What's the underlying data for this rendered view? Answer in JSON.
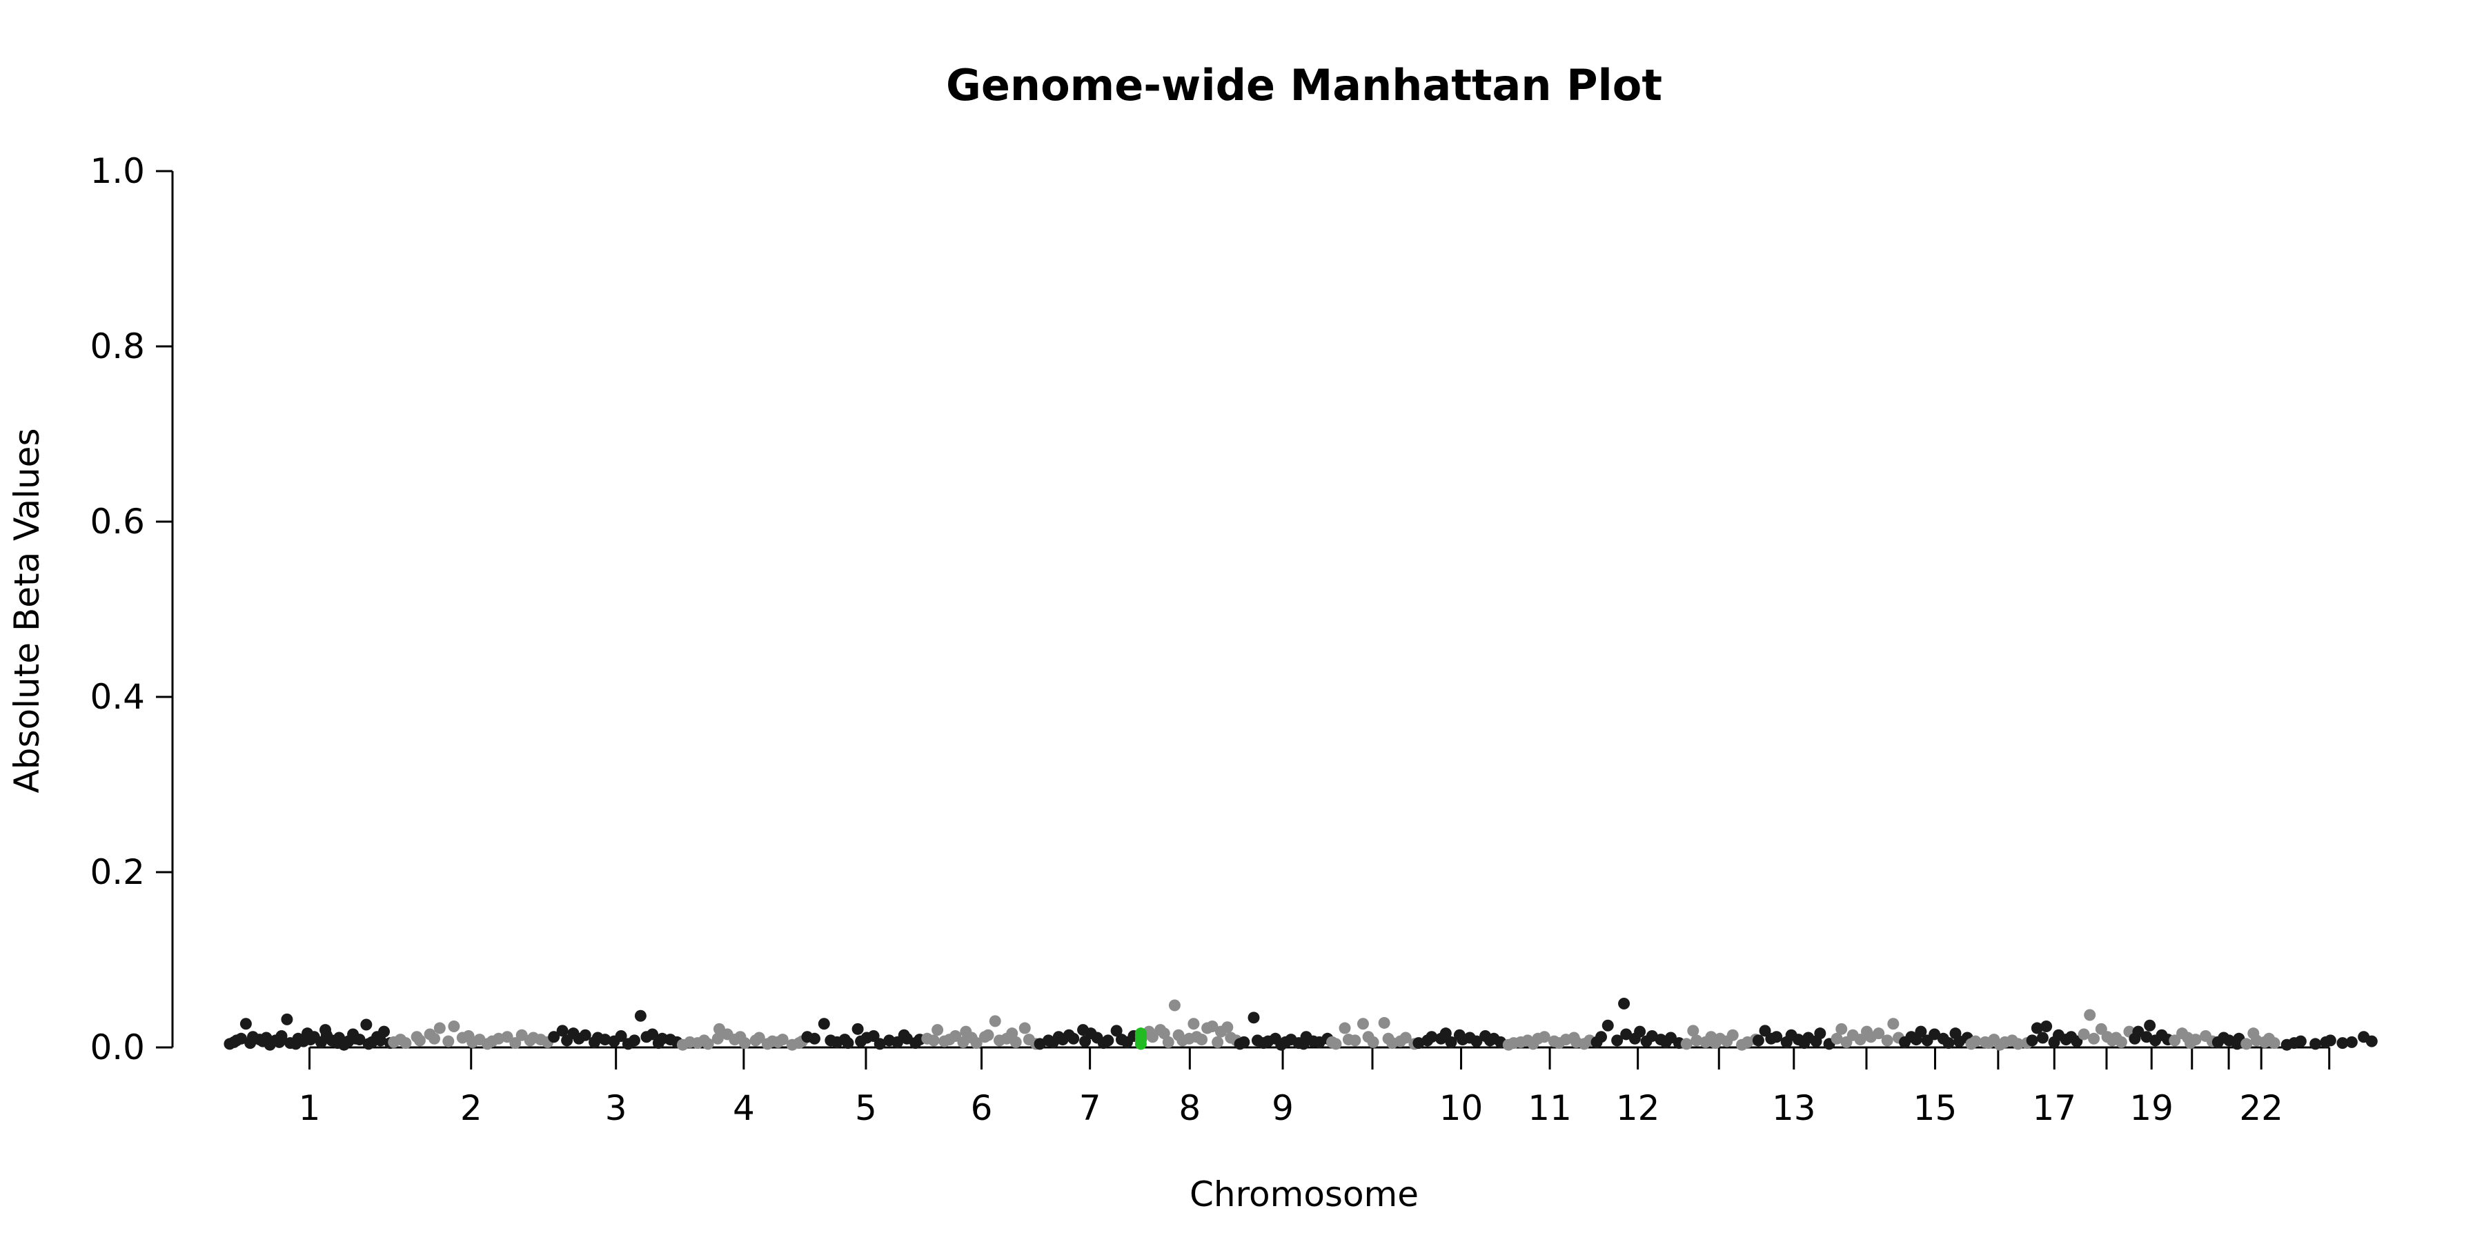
{
  "chart_data": {
    "type": "scatter",
    "title": "Genome-wide Manhattan Plot",
    "xlabel": "Chromosome",
    "ylabel": "Absolute Beta Values",
    "ylim": [
      0,
      1.0
    ],
    "yticks": [
      "0.0",
      "0.2",
      "0.4",
      "0.6",
      "0.8",
      "1.0"
    ],
    "grid": false,
    "legend": "none",
    "colors": {
      "odd": "#1a1a1a",
      "even": "#8c8c8c",
      "highlight": "#22bb22"
    },
    "chromosomes": [
      {
        "label": "1",
        "shown": true,
        "start": 0,
        "end": 249,
        "center": 124.5,
        "values": [
          0.004,
          0.006,
          0.008,
          0.01,
          0.027,
          0.005,
          0.012,
          0.009,
          0.007,
          0.011,
          0.003,
          0.008,
          0.006,
          0.013,
          0.032,
          0.005,
          0.004,
          0.01,
          0.007,
          0.016,
          0.009,
          0.012,
          0.006,
          0.02,
          0.014,
          0.008,
          0.005,
          0.011,
          0.003,
          0.007,
          0.015,
          0.01,
          0.009,
          0.026,
          0.004,
          0.006,
          0.012,
          0.008,
          0.018,
          0.005
        ]
      },
      {
        "label": "2",
        "shown": true,
        "start": 249,
        "end": 492,
        "center": 370.5,
        "values": [
          0.006,
          0.009,
          0.005,
          0.012,
          0.008,
          0.015,
          0.01,
          0.022,
          0.007,
          0.024,
          0.011,
          0.013,
          0.006,
          0.009,
          0.004,
          0.007,
          0.01,
          0.012,
          0.005,
          0.014,
          0.008,
          0.011,
          0.009,
          0.006
        ]
      },
      {
        "label": "3",
        "shown": true,
        "start": 492,
        "end": 690,
        "center": 591,
        "values": [
          0.012,
          0.019,
          0.008,
          0.016,
          0.01,
          0.014,
          0.006,
          0.011,
          0.009,
          0.007,
          0.013,
          0.004,
          0.008,
          0.036,
          0.012,
          0.015,
          0.005,
          0.01,
          0.009,
          0.006
        ]
      },
      {
        "label": "4",
        "shown": true,
        "start": 690,
        "end": 881,
        "center": 785.5,
        "values": [
          0.003,
          0.006,
          0.005,
          0.008,
          0.004,
          0.01,
          0.021,
          0.015,
          0.009,
          0.012,
          0.005,
          0.008,
          0.011,
          0.004,
          0.007,
          0.006,
          0.009,
          0.003,
          0.005,
          0.007
        ]
      },
      {
        "label": "5",
        "shown": true,
        "start": 881,
        "end": 1062,
        "center": 971.5,
        "values": [
          0.012,
          0.01,
          0.027,
          0.008,
          0.006,
          0.009,
          0.005,
          0.021,
          0.007,
          0.011,
          0.013,
          0.004,
          0.008,
          0.006,
          0.014,
          0.01,
          0.005,
          0.009
        ]
      },
      {
        "label": "6",
        "shown": true,
        "start": 1062,
        "end": 1233,
        "center": 1147.5,
        "values": [
          0.01,
          0.008,
          0.02,
          0.007,
          0.009,
          0.013,
          0.006,
          0.018,
          0.011,
          0.005,
          0.012,
          0.014,
          0.03,
          0.008,
          0.01,
          0.016,
          0.006,
          0.022,
          0.009,
          0.004
        ]
      },
      {
        "label": "7",
        "shown": true,
        "start": 1233,
        "end": 1392,
        "center": 1312.5,
        "values": [
          0.004,
          0.008,
          0.006,
          0.012,
          0.009,
          0.014,
          0.01,
          0.02,
          0.007,
          0.016,
          0.011,
          0.005,
          0.008,
          0.019,
          0.009,
          0.006,
          0.013,
          0.01
        ]
      },
      {
        "label": "8",
        "shown": true,
        "start": 1392,
        "end": 1537,
        "center": 1464.5,
        "values": [
          0.015,
          0.018,
          0.012,
          0.02,
          0.016,
          0.006,
          0.048,
          0.014,
          0.008,
          0.01,
          0.027,
          0.012,
          0.009,
          0.022,
          0.024,
          0.006,
          0.018,
          0.023,
          0.011,
          0.008
        ]
      },
      {
        "label": "9",
        "shown": true,
        "start": 1537,
        "end": 1675,
        "center": 1606,
        "values": [
          0.004,
          0.006,
          0.034,
          0.008,
          0.005,
          0.007,
          0.01,
          0.003,
          0.006,
          0.009,
          0.005,
          0.004,
          0.012,
          0.007,
          0.006,
          0.01
        ]
      },
      {
        "label": "",
        "shown": false,
        "start": 1675,
        "end": 1810,
        "center": 1742.5,
        "values": [
          0.006,
          0.004,
          0.022,
          0.009,
          0.008,
          0.027,
          0.012,
          0.006,
          0.028,
          0.01,
          0.005,
          0.007,
          0.011,
          0.004
        ]
      },
      {
        "label": "10",
        "shown": true,
        "start": 1810,
        "end": 1945,
        "center": 1877.5,
        "values": [
          0.005,
          0.008,
          0.012,
          0.01,
          0.016,
          0.006,
          0.014,
          0.009,
          0.011,
          0.007,
          0.013,
          0.008,
          0.01,
          0.006
        ]
      },
      {
        "label": "11",
        "shown": true,
        "start": 1945,
        "end": 2080,
        "center": 2012.5,
        "values": [
          0.003,
          0.005,
          0.006,
          0.008,
          0.004,
          0.01,
          0.012,
          0.007,
          0.005,
          0.009,
          0.011,
          0.006,
          0.004,
          0.008
        ]
      },
      {
        "label": "12",
        "shown": true,
        "start": 2080,
        "end": 2213,
        "center": 2146.5,
        "values": [
          0.006,
          0.012,
          0.025,
          0.008,
          0.05,
          0.015,
          0.01,
          0.018,
          0.007,
          0.013,
          0.009,
          0.006,
          0.011,
          0.005
        ]
      },
      {
        "label": "",
        "shown": false,
        "start": 2213,
        "end": 2327,
        "center": 2270,
        "values": [
          0.004,
          0.019,
          0.008,
          0.006,
          0.012,
          0.005,
          0.01,
          0.007,
          0.014,
          0.003,
          0.006,
          0.009
        ]
      },
      {
        "label": "13",
        "shown": true,
        "start": 2327,
        "end": 2441,
        "center": 2384,
        "values": [
          0.008,
          0.019,
          0.01,
          0.012,
          0.006,
          0.014,
          0.009,
          0.005,
          0.011,
          0.007,
          0.016,
          0.004
        ]
      },
      {
        "label": "",
        "shown": false,
        "start": 2441,
        "end": 2548,
        "center": 2494.5,
        "values": [
          0.01,
          0.021,
          0.006,
          0.014,
          0.009,
          0.018,
          0.012,
          0.016,
          0.008,
          0.027,
          0.011
        ]
      },
      {
        "label": "15",
        "shown": true,
        "start": 2548,
        "end": 2650,
        "center": 2599,
        "values": [
          0.006,
          0.012,
          0.009,
          0.018,
          0.008,
          0.015,
          0.01,
          0.005,
          0.016,
          0.007,
          0.011
        ]
      },
      {
        "label": "",
        "shown": false,
        "start": 2650,
        "end": 2740,
        "center": 2695,
        "values": [
          0.004,
          0.007,
          0.006,
          0.005,
          0.009,
          0.003,
          0.006,
          0.008,
          0.004,
          0.005
        ]
      },
      {
        "label": "17",
        "shown": true,
        "start": 2740,
        "end": 2821,
        "center": 2780.5,
        "values": [
          0.008,
          0.022,
          0.011,
          0.024,
          0.006,
          0.014,
          0.009,
          0.012,
          0.007
        ]
      },
      {
        "label": "",
        "shown": false,
        "start": 2821,
        "end": 2899,
        "center": 2860,
        "values": [
          0.015,
          0.037,
          0.01,
          0.021,
          0.012,
          0.008,
          0.011,
          0.006,
          0.018
        ]
      },
      {
        "label": "19",
        "shown": true,
        "start": 2899,
        "end": 2958,
        "center": 2928.5,
        "values": [
          0.01,
          0.018,
          0.012,
          0.025,
          0.008,
          0.014,
          0.009
        ]
      },
      {
        "label": "",
        "shown": false,
        "start": 2958,
        "end": 3022,
        "center": 2990,
        "values": [
          0.008,
          0.016,
          0.011,
          0.005,
          0.009,
          0.013,
          0.007
        ]
      },
      {
        "label": "",
        "shown": false,
        "start": 3022,
        "end": 3070,
        "center": 3046,
        "values": [
          0.006,
          0.011,
          0.008,
          0.004,
          0.01
        ]
      },
      {
        "label": "22",
        "shown": true,
        "start": 3070,
        "end": 3121,
        "center": 3095.5,
        "values": [
          0.004,
          0.016,
          0.008,
          0.006,
          0.01,
          0.005
        ]
      },
      {
        "label": "",
        "shown": false,
        "start": 3121,
        "end": 3277,
        "center": 3199,
        "values": [
          0.003,
          0.005,
          0.007,
          0.004,
          0.006,
          0.008,
          0.005,
          0.006,
          0.012,
          0.007
        ]
      }
    ],
    "highlight_point": {
      "chromosome": "8",
      "x": 1390,
      "values": [
        0.004,
        0.008,
        0.012,
        0.016
      ]
    }
  }
}
